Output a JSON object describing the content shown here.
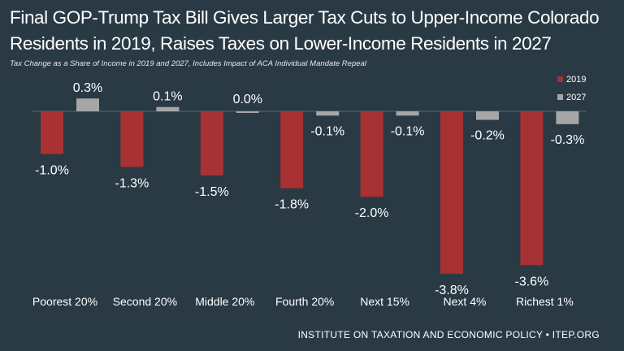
{
  "title_line1": "Final GOP-Trump Tax Bill Gives Larger Tax Cuts to Upper-Income Colorado",
  "title_line2": "Residents in 2019, Raises Taxes on Lower-Income Residents in 2027",
  "subtitle": "Tax Change as a Share of Income in 2019 and 2027, Includes Impact of ACA Individual Mandate Repeal",
  "footer": "INSTITUTE ON TAXATION AND ECONOMIC POLICY • ITEP.ORG",
  "colors": {
    "background": "#293a45",
    "series_2019": "#a83133",
    "series_2027": "#a6a6a6"
  },
  "chart_data": {
    "type": "bar",
    "categories": [
      "Poorest 20%",
      "Second 20%",
      "Middle 20%",
      "Fourth 20%",
      "Next 15%",
      "Next 4%",
      "Richest 1%"
    ],
    "series": [
      {
        "name": "2019",
        "values": [
          -1.0,
          -1.3,
          -1.5,
          -1.8,
          -2.0,
          -3.8,
          -3.6
        ],
        "labels": [
          "-1.0%",
          "-1.3%",
          "-1.5%",
          "-1.8%",
          "-2.0%",
          "-3.8%",
          "-3.6%"
        ]
      },
      {
        "name": "2027",
        "values": [
          0.3,
          0.1,
          0.0,
          -0.1,
          -0.1,
          -0.2,
          -0.3
        ],
        "labels": [
          "0.3%",
          "0.1%",
          "0.0%",
          "-0.1%",
          "-0.1%",
          "-0.2%",
          "-0.3%"
        ]
      }
    ],
    "ylim": [
      -4.0,
      0.4
    ],
    "legend": "top-right",
    "grid": false
  }
}
